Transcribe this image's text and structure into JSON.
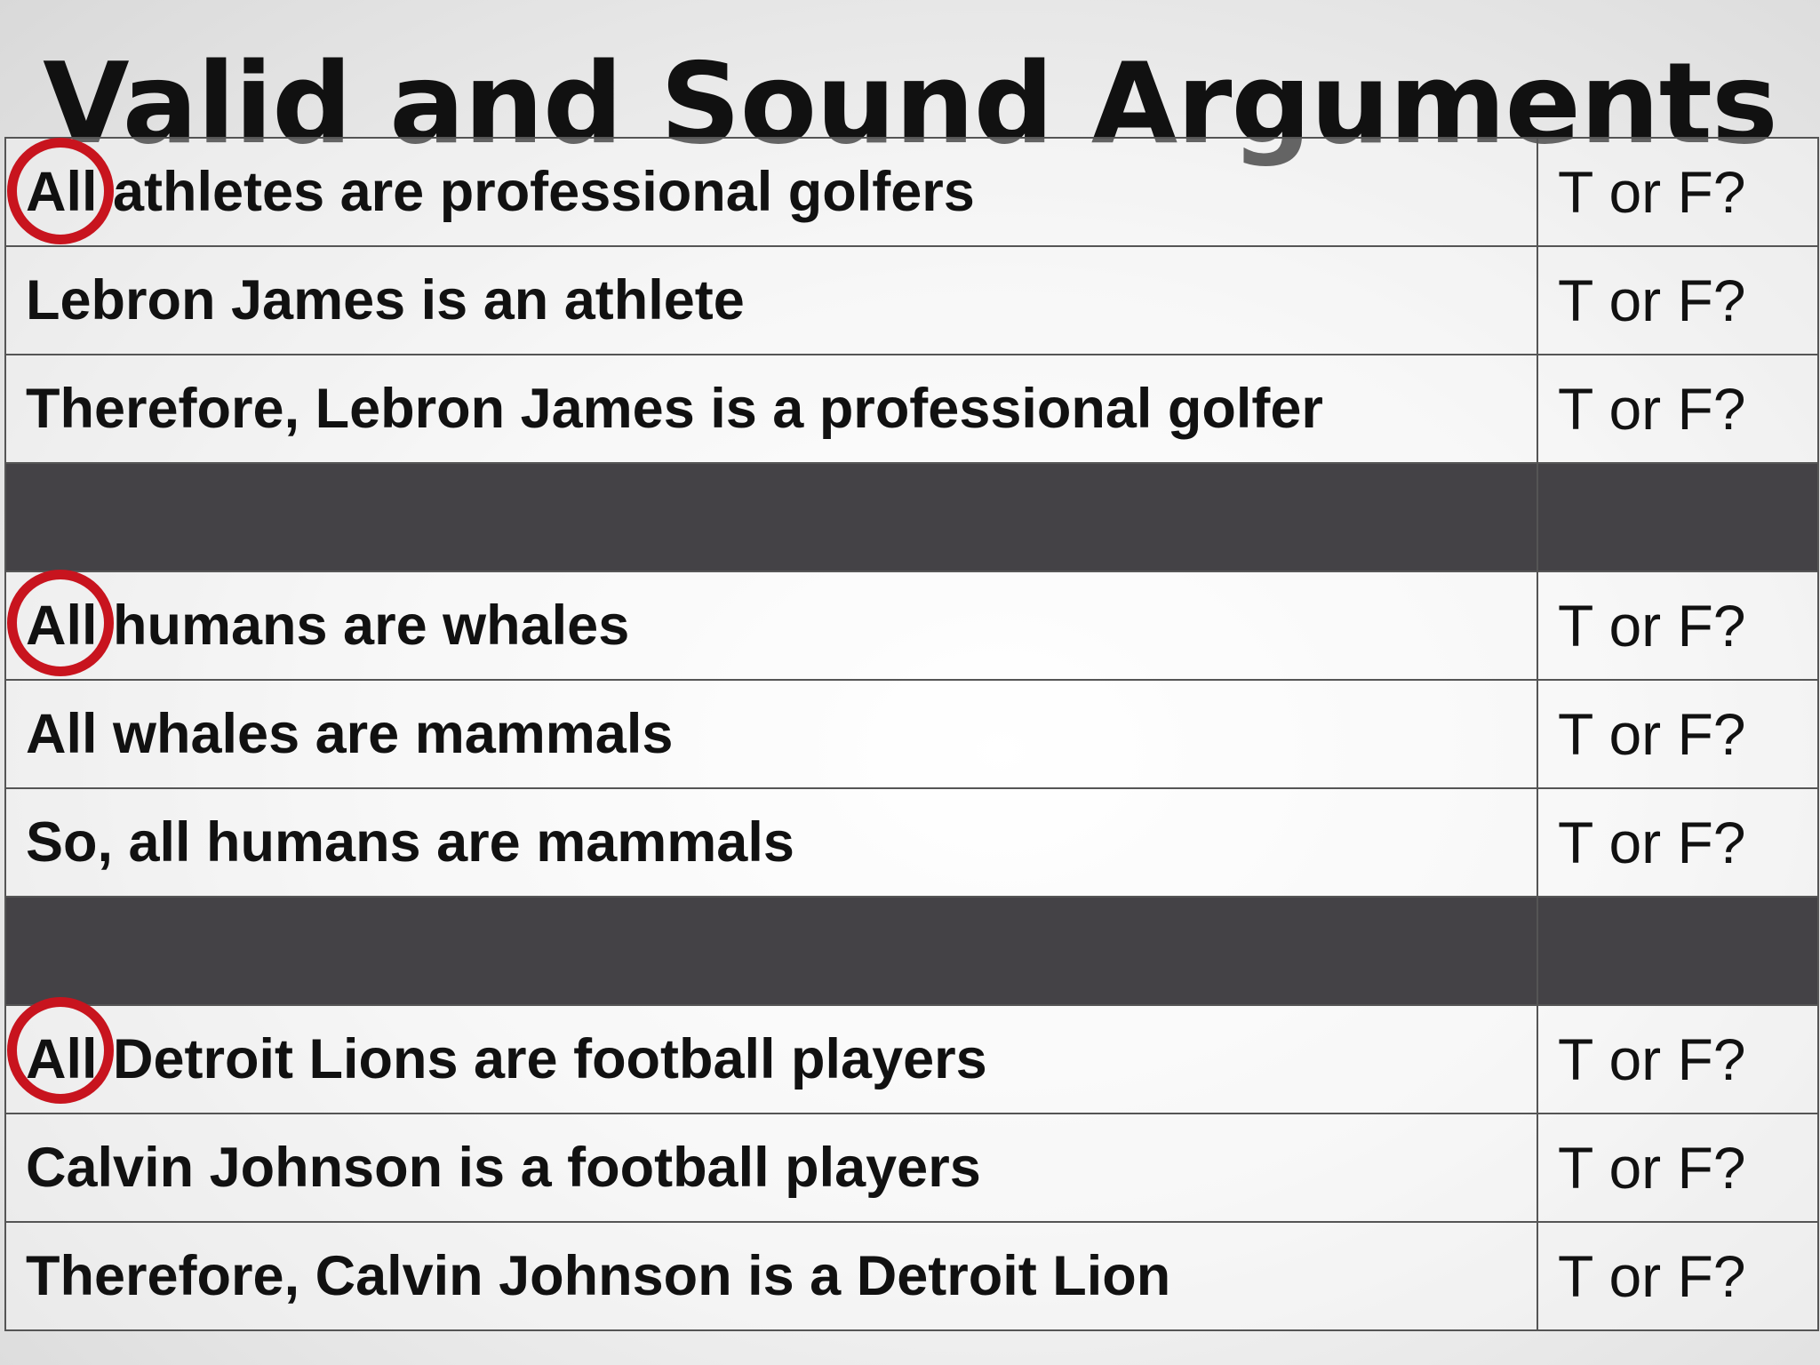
{
  "title": "Valid and Sound Arguments",
  "rows": [
    {
      "statement": "All athletes are professional golfers",
      "answer": "T or F?"
    },
    {
      "statement": "Lebron James is an athlete",
      "answer": "T or F?"
    },
    {
      "statement": "Therefore, Lebron James is a professional golfer",
      "answer": "T or F?"
    },
    {
      "statement": "All humans are whales",
      "answer": "T or F?"
    },
    {
      "statement": "All whales are mammals",
      "answer": "T or F?"
    },
    {
      "statement": "So, all humans are mammals",
      "answer": "T or F?"
    },
    {
      "statement": "All Detroit Lions are football players",
      "answer": "T or F?"
    },
    {
      "statement": "Calvin Johnson is a football players",
      "answer": "T or F?"
    },
    {
      "statement": "Therefore, Calvin Johnson is a Detroit Lion",
      "answer": "T or F?"
    }
  ],
  "colors": {
    "separator": "#444246",
    "circle": "#c8141e",
    "border": "#555555"
  }
}
